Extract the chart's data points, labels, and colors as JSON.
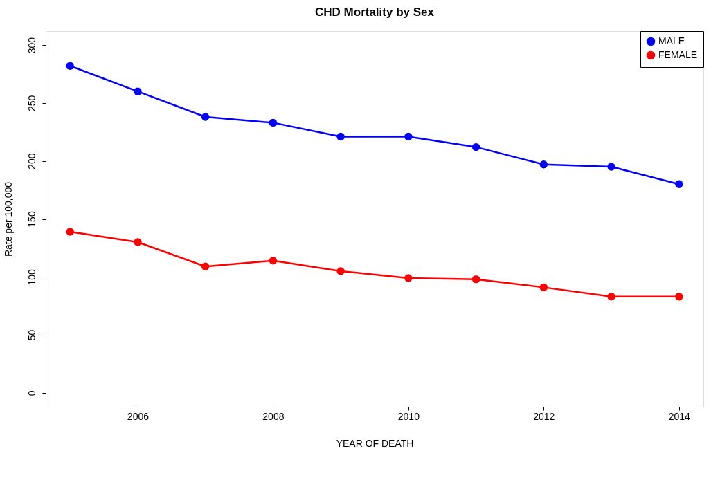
{
  "chart_data": {
    "type": "line",
    "title": "CHD Mortality by Sex",
    "xlabel": "YEAR OF DEATH",
    "ylabel": "Rate per 100,000",
    "x": [
      2005,
      2006,
      2007,
      2008,
      2009,
      2010,
      2011,
      2012,
      2013,
      2014
    ],
    "series": [
      {
        "name": "MALE",
        "color": "#0000ff",
        "values": [
          282,
          260,
          238,
          233,
          221,
          221,
          212,
          197,
          195,
          180
        ]
      },
      {
        "name": "FEMALE",
        "color": "#ff0000",
        "values": [
          139,
          130,
          109,
          114,
          105,
          99,
          98,
          91,
          83,
          83
        ]
      }
    ],
    "xlim": [
      2004.64,
      2014.36
    ],
    "ylim": [
      -12,
      312
    ],
    "xticks": [
      2006,
      2008,
      2010,
      2012,
      2014
    ],
    "yticks": [
      0,
      50,
      100,
      150,
      200,
      250,
      300
    ],
    "grid": false,
    "legend": "top right",
    "marker": "circle",
    "line_style": "solid"
  }
}
